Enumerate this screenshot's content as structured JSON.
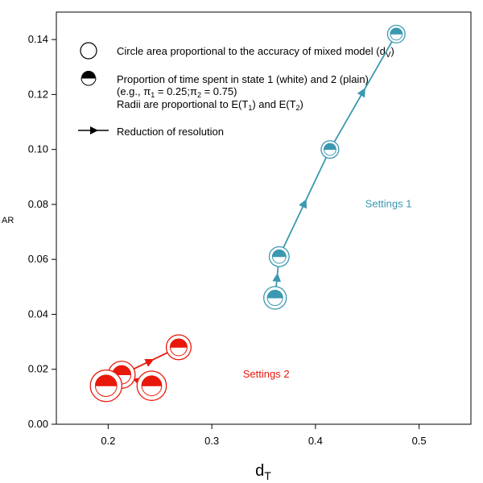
{
  "chart_data": {
    "type": "scatter",
    "xlabel": "d",
    "xlabel_sub": "T",
    "ylabel": "AR",
    "xlim": [
      0.15,
      0.55
    ],
    "ylim": [
      0.0,
      0.15
    ],
    "xticks": [
      0.2,
      0.3,
      0.4,
      0.5
    ],
    "yticks": [
      0.0,
      0.02,
      0.04,
      0.06,
      0.08,
      0.1,
      0.12,
      0.14
    ],
    "xtick_labels": [
      "0.2",
      "0.3",
      "0.4",
      "0.5"
    ],
    "ytick_labels": [
      "0.00",
      "0.02",
      "0.04",
      "0.06",
      "0.08",
      "0.10",
      "0.12",
      "0.14"
    ],
    "grid": false,
    "legend": {
      "placement": "top-left",
      "line1": "Circle area proportional to the accuracy of mixed model (d",
      "line1_sub": "V",
      "line1_end": ")",
      "line2a": "Proportion of time spent in state 1 (white) and 2 (plain)",
      "line2b_pre": "(e.g., ",
      "line2b_pi": "π",
      "line2b_s1": "1",
      "line2b_mid": " = 0.25;",
      "line2b_s2": "2",
      "line2b_end": " = 0.75)",
      "line3_pre": "Radii are proportional to E(T",
      "line3_s1": "1",
      "line3_mid": ") and E(T",
      "line3_s2": "2",
      "line3_end": ")",
      "line4": "Reduction of resolution"
    },
    "series": [
      {
        "name": "Settings 1",
        "color": "#3a98b0",
        "label_at": [
          0.448,
          0.079
        ],
        "points": [
          {
            "x": 0.478,
            "y": 0.142,
            "size": 0.78,
            "pi1": 0.15
          },
          {
            "x": 0.414,
            "y": 0.1,
            "size": 0.78,
            "pi1": 0.3
          },
          {
            "x": 0.365,
            "y": 0.061,
            "size": 0.88,
            "pi1": 0.35
          },
          {
            "x": 0.361,
            "y": 0.046,
            "size": 1.0,
            "pi1": 0.4
          }
        ],
        "arrows": [
          [
            3,
            2
          ],
          [
            2,
            1
          ],
          [
            1,
            0
          ]
        ]
      },
      {
        "name": "Settings 2",
        "color": "#e8180c",
        "label_at": [
          0.33,
          0.017
        ],
        "points": [
          {
            "x": 0.268,
            "y": 0.028,
            "size": 1.1,
            "pi1": 0.7
          },
          {
            "x": 0.213,
            "y": 0.018,
            "size": 1.2,
            "pi1": 0.7
          },
          {
            "x": 0.198,
            "y": 0.014,
            "size": 1.4,
            "pi1": 0.7
          },
          {
            "x": 0.242,
            "y": 0.014,
            "size": 1.3,
            "pi1": 0.7
          }
        ],
        "arrows": [
          [
            1,
            0
          ],
          [
            3,
            1
          ],
          [
            2,
            1
          ]
        ]
      }
    ]
  }
}
